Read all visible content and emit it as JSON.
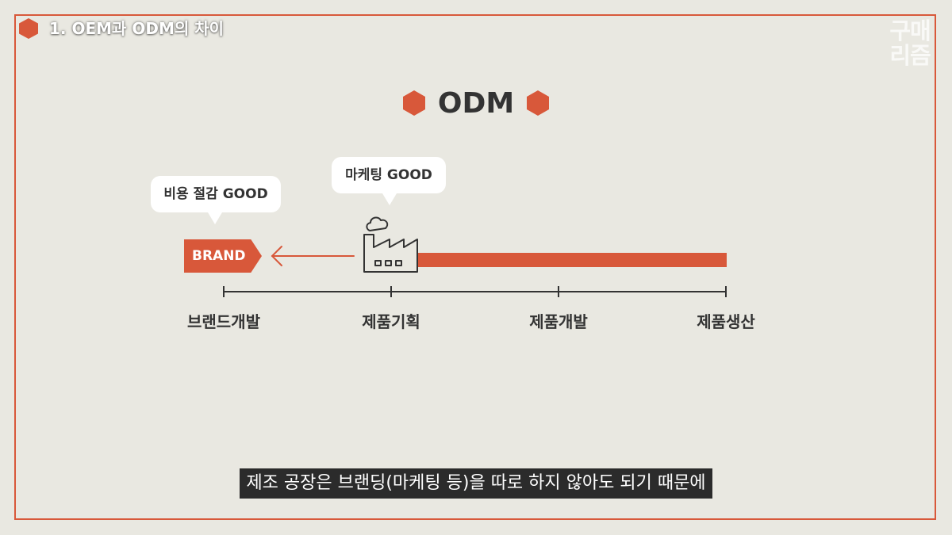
{
  "section": {
    "title": "1. OEM과 ODM의 차이"
  },
  "watermark": {
    "line1": "구매",
    "line2": "리즘"
  },
  "heading": {
    "title": "ODM"
  },
  "bubbles": {
    "cost": "비용 절감 GOOD",
    "marketing": "마케팅 GOOD"
  },
  "brand_tag": {
    "label": "BRAND"
  },
  "timeline": {
    "stages": [
      "브랜드개발",
      "제품기획",
      "제품개발",
      "제품생산"
    ]
  },
  "subtitle": {
    "text": "제조 공장은 브랜딩(마케팅 등)을 따로 하지 않아도 되기 때문에"
  },
  "colors": {
    "accent": "#d8583a",
    "background": "#e9e8e1",
    "text": "#333333"
  },
  "icons": [
    "hexagon-icon",
    "factory-icon",
    "left-arrow-icon"
  ]
}
